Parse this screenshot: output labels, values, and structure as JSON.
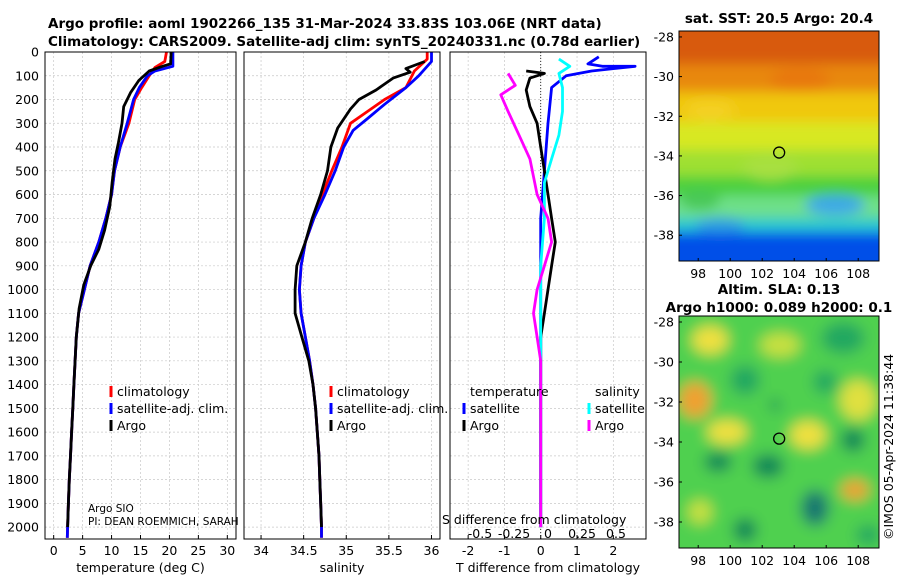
{
  "title": {
    "line1": "Argo profile: aoml 1902266_135 31-Mar-2024 33.83S 103.06E (NRT data)",
    "line2": "Climatology: CARS2009. Satellite-adj clim: synTS_20240331.nc (0.78d earlier)"
  },
  "credits": {
    "org": "Argo SIO",
    "pi": "PI: DEAN ROEMMICH, SARAH"
  },
  "sst_title": "sat. SST: 20.5 Argo: 20.4",
  "sla_title1": "Altim. SLA: 0.13",
  "sla_title2": "Argo h1000: 0.089 h2000: 0.1",
  "watermark": "©IMOS 05-Apr-2024 11:38:44",
  "colors": {
    "climatology": "#ff0000",
    "satellite": "#0000ff",
    "argo": "#000000",
    "t_sat": "#00ffff",
    "s_diff": "#ff00ff"
  },
  "chart_data": [
    {
      "type": "line",
      "name": "temperature-profile",
      "xlabel": "temperature (deg C)",
      "ylabel": "",
      "xlim": [
        -1.5,
        31.5
      ],
      "ylim": [
        2050,
        0
      ],
      "xticks": [
        0,
        5,
        10,
        15,
        20,
        25,
        30
      ],
      "xticklabels": [
        "0",
        "5",
        "10",
        "15",
        "20",
        "25",
        "30"
      ],
      "yticks": [
        0,
        100,
        200,
        300,
        400,
        500,
        600,
        700,
        800,
        900,
        1000,
        1100,
        1200,
        1300,
        1400,
        1500,
        1600,
        1700,
        1800,
        1900,
        2000
      ],
      "yticklabels": [
        "0",
        "100",
        "200",
        "300",
        "400",
        "500",
        "600",
        "700",
        "800",
        "900",
        "1000",
        "1100",
        "1200",
        "1300",
        "1400",
        "1500",
        "1600",
        "1700",
        "1800",
        "1900",
        "2000"
      ],
      "legend": [
        "climatology",
        "satellite-adj. clim.",
        "Argo"
      ],
      "series": [
        {
          "name": "climatology",
          "color": "#ff0000",
          "points": [
            [
              19.5,
              0
            ],
            [
              19.2,
              40
            ],
            [
              17.5,
              65
            ],
            [
              16.5,
              100
            ],
            [
              15.2,
              150
            ],
            [
              14,
              200
            ],
            [
              13,
              300
            ],
            [
              11.5,
              400
            ],
            [
              10.5,
              500
            ],
            [
              10,
              600
            ],
            [
              9,
              700
            ],
            [
              7.8,
              800
            ],
            [
              6.3,
              900
            ],
            [
              5.3,
              1000
            ],
            [
              4.3,
              1100
            ],
            [
              3.9,
              1200
            ],
            [
              3.7,
              1300
            ],
            [
              3.5,
              1400
            ],
            [
              3.3,
              1500
            ],
            [
              3.1,
              1600
            ],
            [
              2.9,
              1700
            ],
            [
              2.7,
              1800
            ],
            [
              2.55,
              1900
            ],
            [
              2.4,
              2000
            ],
            [
              2.35,
              2045
            ]
          ]
        },
        {
          "name": "satellite-adj. clim.",
          "color": "#0000ff",
          "points": [
            [
              20.6,
              0
            ],
            [
              20.6,
              60
            ],
            [
              17.5,
              80
            ],
            [
              16.2,
              100
            ],
            [
              14.8,
              150
            ],
            [
              13.8,
              200
            ],
            [
              12.7,
              300
            ],
            [
              11.5,
              400
            ],
            [
              10.5,
              500
            ],
            [
              10,
              600
            ],
            [
              9,
              700
            ],
            [
              7.8,
              800
            ],
            [
              6.3,
              900
            ],
            [
              5.3,
              1000
            ],
            [
              4.3,
              1100
            ],
            [
              3.9,
              1200
            ],
            [
              3.7,
              1300
            ],
            [
              3.5,
              1400
            ],
            [
              3.3,
              1500
            ],
            [
              3.1,
              1600
            ],
            [
              2.9,
              1700
            ],
            [
              2.7,
              1800
            ],
            [
              2.55,
              1900
            ],
            [
              2.4,
              2000
            ],
            [
              2.35,
              2045
            ]
          ]
        },
        {
          "name": "Argo",
          "color": "#000000",
          "points": [
            [
              20.3,
              0
            ],
            [
              20.2,
              50
            ],
            [
              18.8,
              60
            ],
            [
              16.5,
              80
            ],
            [
              14.7,
              120
            ],
            [
              13.3,
              170
            ],
            [
              12.1,
              230
            ],
            [
              11.8,
              300
            ],
            [
              11.2,
              380
            ],
            [
              10.6,
              450
            ],
            [
              10.1,
              550
            ],
            [
              9.7,
              650
            ],
            [
              8.8,
              750
            ],
            [
              7.8,
              830
            ],
            [
              6.4,
              900
            ],
            [
              5.2,
              980
            ],
            [
              4.4,
              1080
            ],
            [
              3.9,
              1200
            ],
            [
              3.7,
              1300
            ],
            [
              3.5,
              1400
            ],
            [
              3.3,
              1500
            ],
            [
              3.1,
              1600
            ],
            [
              2.9,
              1700
            ],
            [
              2.7,
              1800
            ],
            [
              2.55,
              1900
            ],
            [
              2.4,
              2000
            ]
          ]
        }
      ]
    },
    {
      "type": "line",
      "name": "salinity-profile",
      "xlabel": "salinity",
      "xlim": [
        33.8,
        36.1
      ],
      "ylim": [
        2050,
        0
      ],
      "xticks": [
        34,
        34.5,
        35,
        35.5,
        36
      ],
      "xticklabels": [
        "34",
        "34.5",
        "35",
        "35.5",
        "36"
      ],
      "legend": [
        "climatology",
        "satellite-adj. clim.",
        "Argo"
      ],
      "series": [
        {
          "name": "climatology",
          "color": "#ff0000",
          "points": [
            [
              35.95,
              0
            ],
            [
              35.95,
              30
            ],
            [
              35.8,
              80
            ],
            [
              35.7,
              150
            ],
            [
              35.45,
              200
            ],
            [
              35.25,
              250
            ],
            [
              35.05,
              300
            ],
            [
              34.95,
              400
            ],
            [
              34.83,
              500
            ],
            [
              34.72,
              600
            ],
            [
              34.62,
              700
            ],
            [
              34.52,
              800
            ],
            [
              34.47,
              900
            ],
            [
              34.45,
              1000
            ],
            [
              34.47,
              1100
            ],
            [
              34.52,
              1200
            ],
            [
              34.57,
              1300
            ],
            [
              34.61,
              1400
            ],
            [
              34.64,
              1500
            ],
            [
              34.66,
              1600
            ],
            [
              34.68,
              1700
            ],
            [
              34.69,
              1800
            ],
            [
              34.7,
              1900
            ],
            [
              34.71,
              2000
            ],
            [
              34.71,
              2045
            ]
          ]
        },
        {
          "name": "satellite-adj. clim.",
          "color": "#0000ff",
          "points": [
            [
              36.0,
              0
            ],
            [
              36.0,
              40
            ],
            [
              35.85,
              100
            ],
            [
              35.7,
              150
            ],
            [
              35.45,
              220
            ],
            [
              35.25,
              280
            ],
            [
              35.08,
              330
            ],
            [
              34.97,
              400
            ],
            [
              34.87,
              500
            ],
            [
              34.75,
              600
            ],
            [
              34.62,
              700
            ],
            [
              34.52,
              800
            ],
            [
              34.47,
              900
            ],
            [
              34.45,
              1000
            ],
            [
              34.47,
              1100
            ],
            [
              34.52,
              1200
            ],
            [
              34.57,
              1300
            ],
            [
              34.61,
              1400
            ],
            [
              34.64,
              1500
            ],
            [
              34.66,
              1600
            ],
            [
              34.68,
              1700
            ],
            [
              34.69,
              1800
            ],
            [
              34.7,
              1900
            ],
            [
              34.71,
              2000
            ],
            [
              34.71,
              2045
            ]
          ]
        },
        {
          "name": "Argo",
          "color": "#000000",
          "points": [
            [
              35.92,
              40
            ],
            [
              35.7,
              70
            ],
            [
              35.75,
              85
            ],
            [
              35.55,
              110
            ],
            [
              35.35,
              160
            ],
            [
              35.15,
              200
            ],
            [
              35.05,
              240
            ],
            [
              34.9,
              320
            ],
            [
              34.82,
              400
            ],
            [
              34.78,
              500
            ],
            [
              34.7,
              600
            ],
            [
              34.6,
              700
            ],
            [
              34.52,
              800
            ],
            [
              34.42,
              900
            ],
            [
              34.4,
              1000
            ],
            [
              34.4,
              1100
            ],
            [
              34.48,
              1200
            ],
            [
              34.56,
              1300
            ],
            [
              34.61,
              1400
            ],
            [
              34.64,
              1500
            ],
            [
              34.66,
              1600
            ],
            [
              34.68,
              1700
            ],
            [
              34.69,
              1800
            ],
            [
              34.7,
              1900
            ],
            [
              34.71,
              2000
            ]
          ]
        }
      ]
    },
    {
      "type": "line",
      "name": "difference-profile",
      "xlabel": "T difference from climatology",
      "xlabel_top": "S difference from climatology",
      "xlim": [
        -2.5,
        2.9
      ],
      "ylim": [
        2050,
        0
      ],
      "xticks": [
        -2,
        -1,
        0,
        1,
        2
      ],
      "xticklabels": [
        "-2",
        "-1",
        "0",
        "1",
        "2"
      ],
      "s_ticks": [
        -0.5,
        -0.25,
        0,
        0.25,
        0.5
      ],
      "s_ticklabels": [
        "-0.5",
        "-0.25",
        "0",
        "0.25",
        "0.5"
      ],
      "legend_temperature_title": "temperature",
      "legend_salinity_title": "salinity",
      "legend": [
        "satellite",
        "Argo",
        "satellite",
        "Argo"
      ],
      "series": [
        {
          "name": "T satellite",
          "color": "#0000ff",
          "points": [
            [
              1.6,
              20
            ],
            [
              1.3,
              50
            ],
            [
              1.7,
              60
            ],
            [
              2.6,
              60
            ],
            [
              2.0,
              70
            ],
            [
              1.4,
              80
            ],
            [
              0.7,
              100
            ],
            [
              0.3,
              150
            ],
            [
              0.2,
              300
            ],
            [
              0.1,
              500
            ],
            [
              0,
              700
            ],
            [
              0,
              2000
            ]
          ]
        },
        {
          "name": "T Argo",
          "color": "#000000",
          "points": [
            [
              -0.4,
              80
            ],
            [
              0.1,
              90
            ],
            [
              -0.3,
              110
            ],
            [
              -0.4,
              160
            ],
            [
              -0.3,
              230
            ],
            [
              -0.1,
              300
            ],
            [
              0,
              400
            ],
            [
              0.1,
              500
            ],
            [
              0.2,
              600
            ],
            [
              0.3,
              700
            ],
            [
              0.4,
              800
            ],
            [
              0.3,
              900
            ],
            [
              0.2,
              1000
            ],
            [
              0.1,
              1100
            ],
            [
              0,
              1200
            ],
            [
              0,
              2000
            ]
          ]
        },
        {
          "name": "S satellite",
          "color": "#00ffff",
          "points": [
            [
              0.5,
              30
            ],
            [
              0.8,
              60
            ],
            [
              0.5,
              90
            ],
            [
              0.6,
              150
            ],
            [
              0.6,
              250
            ],
            [
              0.5,
              350
            ],
            [
              0.3,
              450
            ],
            [
              0.1,
              550
            ],
            [
              0.1,
              700
            ],
            [
              0,
              900
            ],
            [
              0,
              1500
            ],
            [
              0,
              2000
            ]
          ]
        },
        {
          "name": "S Argo",
          "color": "#ff00ff",
          "points": [
            [
              -0.9,
              90
            ],
            [
              -0.7,
              140
            ],
            [
              -1.1,
              180
            ],
            [
              -0.9,
              250
            ],
            [
              -0.6,
              350
            ],
            [
              -0.3,
              450
            ],
            [
              -0.1,
              600
            ],
            [
              0.2,
              700
            ],
            [
              0.3,
              800
            ],
            [
              0.1,
              900
            ],
            [
              -0.1,
              1000
            ],
            [
              -0.2,
              1100
            ],
            [
              -0.1,
              1200
            ],
            [
              0,
              1300
            ],
            [
              0,
              2000
            ]
          ]
        }
      ]
    },
    {
      "type": "heatmap",
      "name": "sst-map",
      "title": "sat. SST: 20.5 Argo: 20.4",
      "xlim": [
        96.8,
        109.3
      ],
      "ylim": [
        -39.3,
        -27.7
      ],
      "xticks": [
        98,
        100,
        102,
        104,
        106,
        108
      ],
      "xticklabels": [
        "98",
        "100",
        "102",
        "104",
        "106",
        "108"
      ],
      "yticks": [
        -28,
        -30,
        -32,
        -34,
        -36,
        -38
      ],
      "yticklabels": [
        "-28",
        "-30",
        "-32",
        "-34",
        "-36",
        "-38"
      ],
      "marker": {
        "lon": 103.06,
        "lat": -33.83
      }
    },
    {
      "type": "heatmap",
      "name": "sla-map",
      "title": "Argo h1000: 0.089 h2000: 0.1",
      "xlim": [
        96.8,
        109.3
      ],
      "ylim": [
        -39.3,
        -27.7
      ],
      "xticks": [
        98,
        100,
        102,
        104,
        106,
        108
      ],
      "xticklabels": [
        "98",
        "100",
        "102",
        "104",
        "106",
        "108"
      ],
      "yticks": [
        -28,
        -30,
        -32,
        -34,
        -36,
        -38
      ],
      "yticklabels": [
        "-28",
        "-30",
        "-32",
        "-34",
        "-36",
        "-38"
      ],
      "marker": {
        "lon": 103.06,
        "lat": -33.83
      }
    }
  ]
}
